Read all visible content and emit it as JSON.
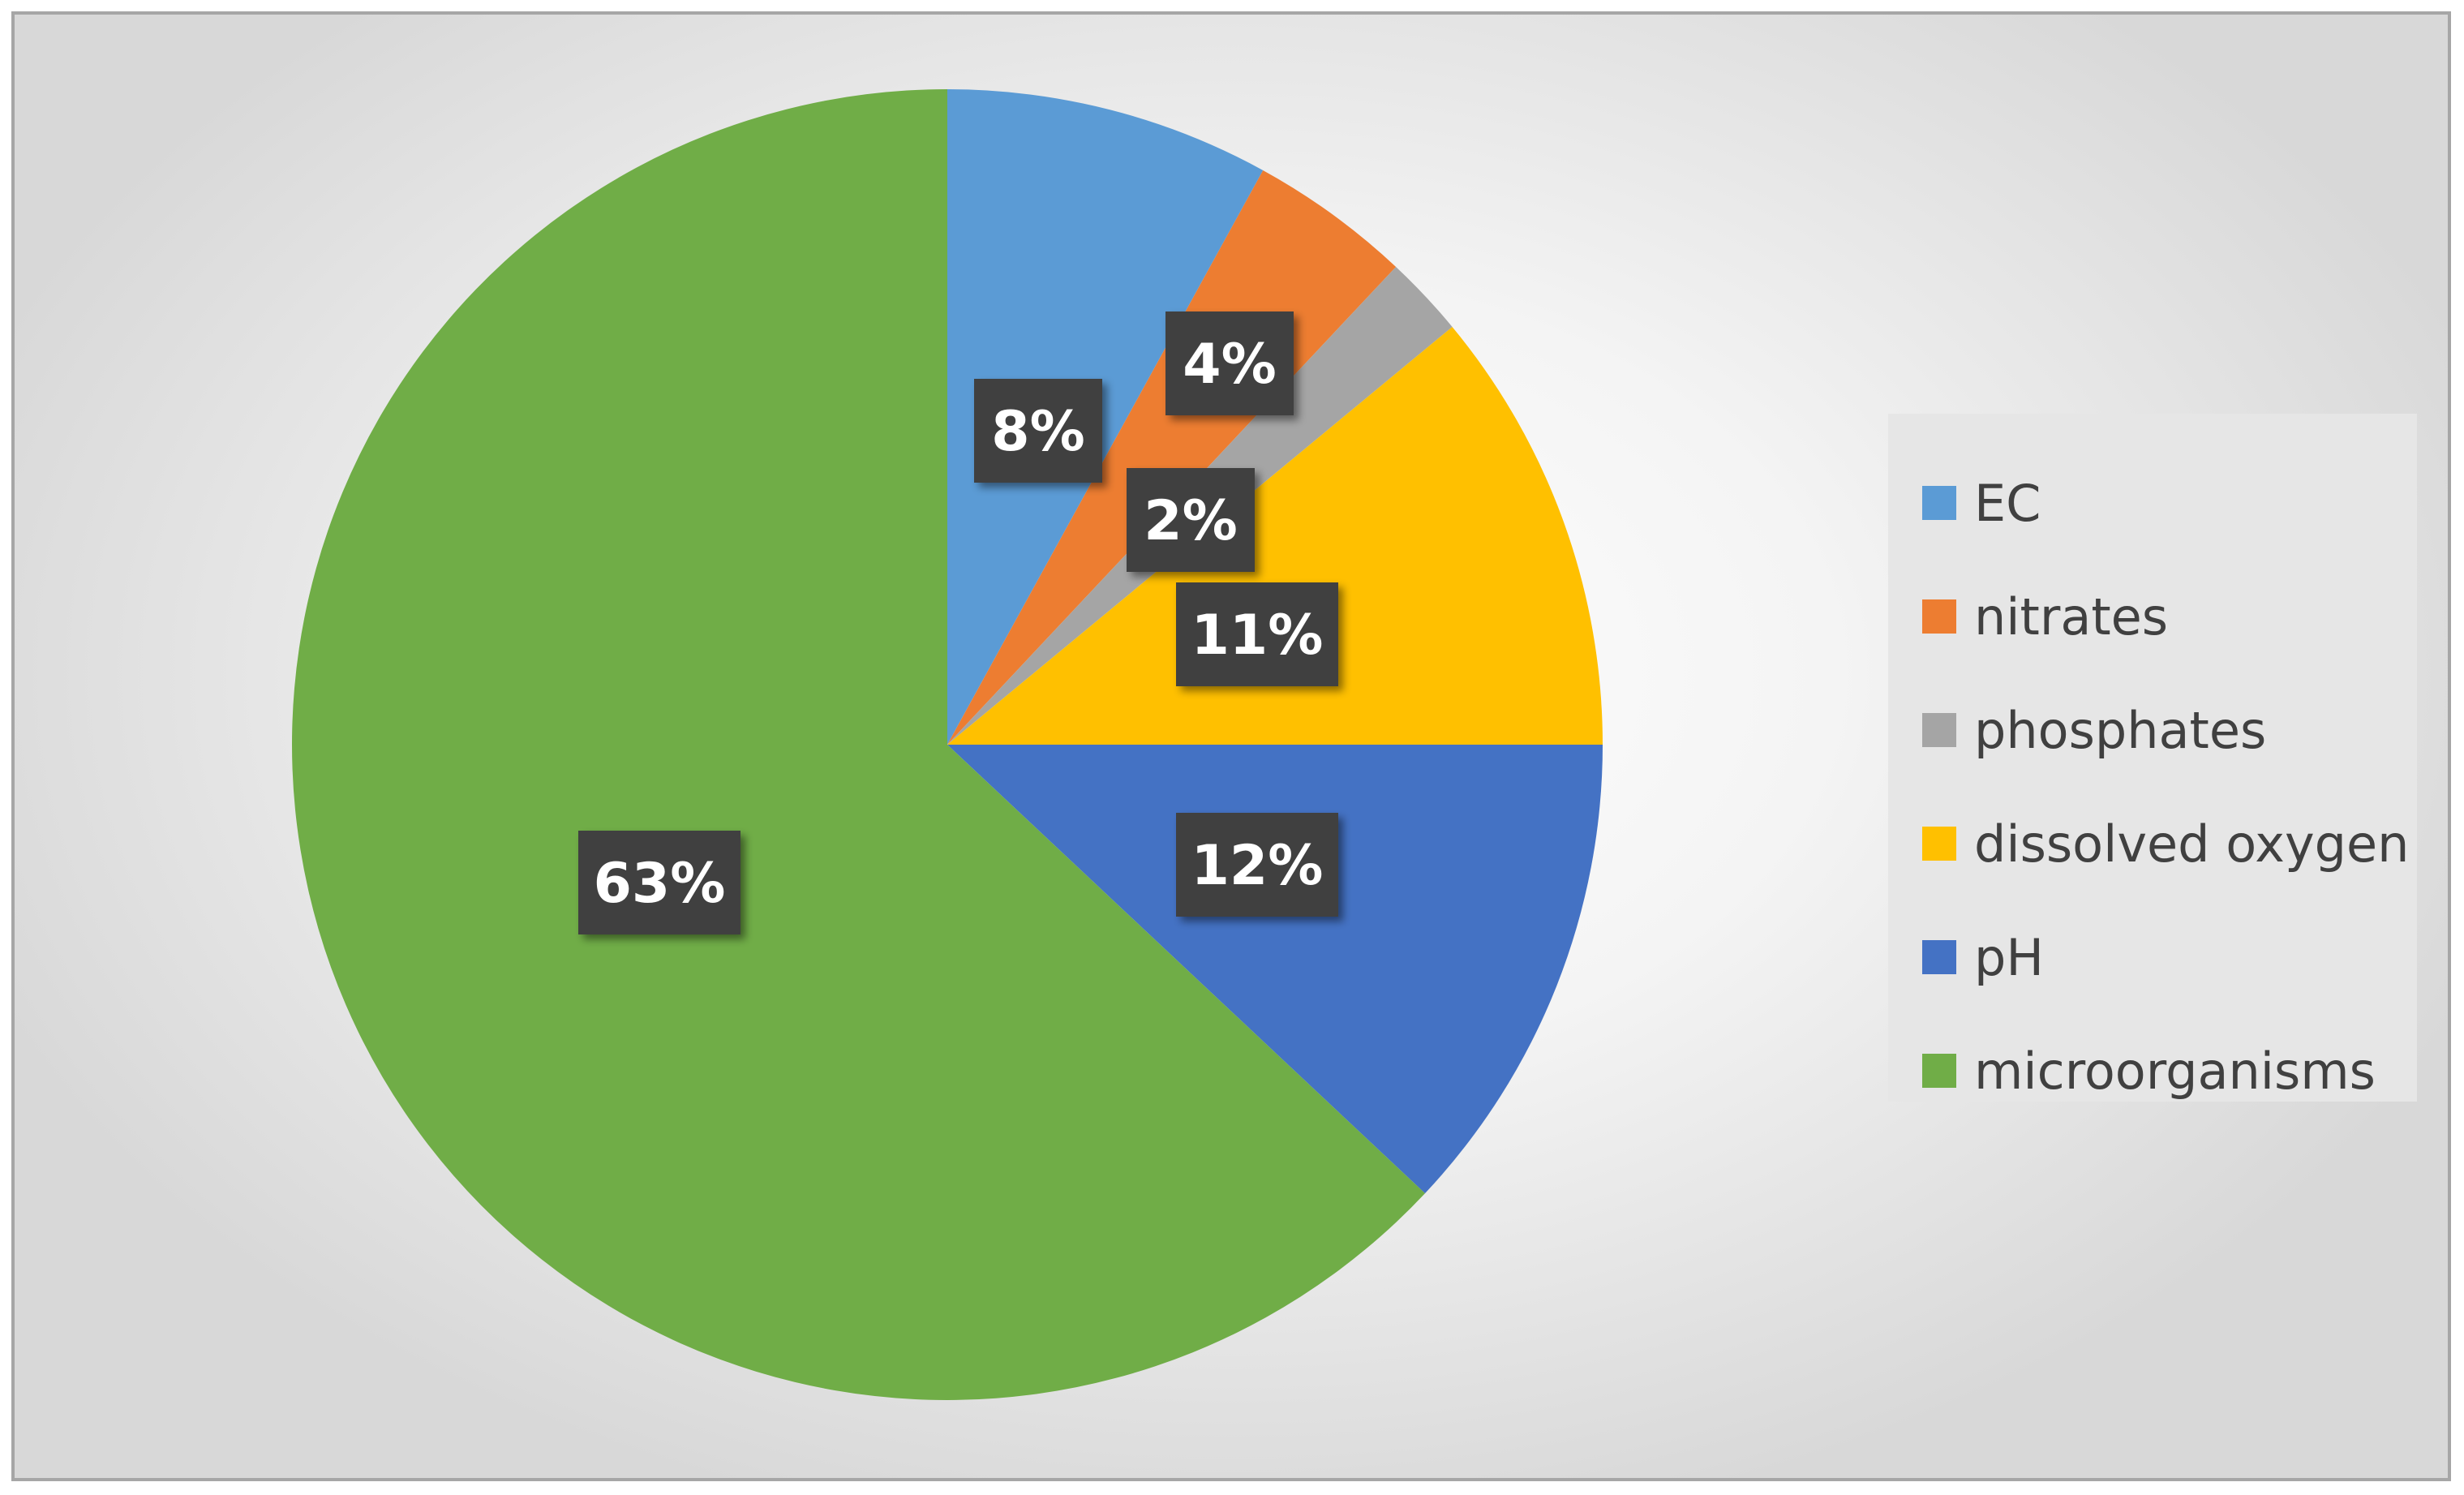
{
  "chart_data": {
    "type": "pie",
    "slices": [
      {
        "name": "EC",
        "value": 8,
        "label": "8%",
        "color": "#5b9bd5"
      },
      {
        "name": "nitrates",
        "value": 4,
        "label": "4%",
        "color": "#ed7d31"
      },
      {
        "name": "phosphates",
        "value": 2,
        "label": "2%",
        "color": "#a5a5a5"
      },
      {
        "name": "dissolved oxygen",
        "value": 11,
        "label": "11%",
        "color": "#ffc000"
      },
      {
        "name": "pH",
        "value": 12,
        "label": "12%",
        "color": "#4472c4"
      },
      {
        "name": "microorganisms",
        "value": 63,
        "label": "63%",
        "color": "#70ad47"
      }
    ],
    "start_angle": "12 o'clock",
    "direction": "clockwise",
    "legend_position": "right",
    "data_label_style": "dark boxes with white bold text"
  }
}
